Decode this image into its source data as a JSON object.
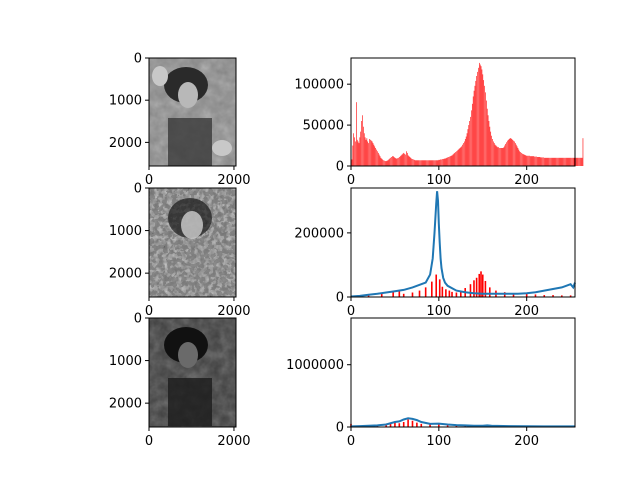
{
  "figure": {
    "background": "#ffffff",
    "hist_color": "#ff0000",
    "cdf_color": "#1f77b4"
  },
  "chart_data": [
    {
      "type": "image",
      "name": "original-grayscale-image",
      "subject": "grayscale portrait photo of a woman with curly hair raising her hands",
      "x_ticks": [
        0,
        2000
      ],
      "y_ticks": [
        0,
        1000,
        2000
      ],
      "xlim": [
        0,
        2048
      ],
      "ylim": [
        2560,
        0
      ]
    },
    {
      "type": "bar",
      "name": "original-histogram",
      "xlim": [
        0,
        255
      ],
      "ylim": [
        0,
        132000
      ],
      "x_ticks": [
        0,
        100,
        200
      ],
      "y_ticks": [
        0,
        50000,
        100000
      ],
      "bar_color": "#ff0000",
      "values": [
        2000,
        8000,
        25000,
        40000,
        35000,
        30000,
        78000,
        32000,
        30000,
        28000,
        35000,
        42000,
        55000,
        62000,
        48000,
        40000,
        35000,
        32000,
        34000,
        30000,
        28000,
        33000,
        32000,
        31000,
        30000,
        28000,
        26000,
        24000,
        22000,
        20000,
        18000,
        16000,
        14000,
        12000,
        10000,
        9000,
        8000,
        7000,
        6500,
        6000,
        6000,
        6500,
        7000,
        8000,
        9000,
        10000,
        11000,
        12000,
        12000,
        11000,
        10000,
        9500,
        9000,
        9500,
        10000,
        11000,
        12000,
        13000,
        14000,
        15000,
        16000,
        15000,
        14000,
        18000,
        16000,
        13000,
        12000,
        11000,
        10000,
        9000,
        8500,
        8000,
        7500,
        7000,
        7000,
        7000,
        7000,
        7000,
        7000,
        7000,
        7000,
        7000,
        7000,
        7000,
        7000,
        7000,
        7000,
        7000,
        7000,
        7000,
        7000,
        7000,
        7000,
        7000,
        7000,
        7000,
        7000,
        7000,
        7000,
        7000,
        7500,
        7500,
        8000,
        8000,
        8500,
        8500,
        9000,
        9000,
        9500,
        10000,
        10500,
        11000,
        11500,
        12000,
        12500,
        13000,
        14000,
        15000,
        16000,
        17000,
        18000,
        19000,
        20000,
        21000,
        22000,
        23000,
        24000,
        26000,
        28000,
        30000,
        33000,
        36000,
        40000,
        45000,
        50000,
        55000,
        60000,
        68000,
        76000,
        85000,
        92000,
        98000,
        104000,
        110000,
        115000,
        120000,
        126000,
        124000,
        122000,
        118000,
        112000,
        105000,
        98000,
        90000,
        80000,
        70000,
        62000,
        55000,
        48000,
        42000,
        37000,
        33000,
        30000,
        28000,
        26000,
        25000,
        24000,
        23000,
        23000,
        22000,
        22000,
        22000,
        22000,
        22000,
        23000,
        25000,
        27000,
        29000,
        31000,
        32000,
        33000,
        34000,
        34000,
        33000,
        32000,
        31000,
        30000,
        28000,
        26000,
        24000,
        22000,
        20000,
        18000,
        17000,
        16000,
        15000,
        14500,
        14000,
        13500,
        13000,
        12500,
        12500,
        12500,
        12500,
        12000,
        12000,
        12000,
        12000,
        12000,
        11500,
        11500,
        11500,
        11000,
        11000,
        11000,
        11000,
        10500,
        10500,
        10500,
        10500,
        10000,
        10000,
        10000,
        10000,
        10000,
        10000,
        10000,
        10000,
        10000,
        10000,
        10000,
        10000,
        10000,
        10000,
        10000,
        10000,
        10000,
        10000,
        10000,
        10000,
        10000,
        10000,
        10000,
        10000,
        10000,
        10000,
        10000,
        10000,
        10000,
        10000,
        10000,
        10000,
        10000,
        10000,
        10000,
        10000,
        10000,
        10000,
        10000,
        10000,
        10000,
        10000,
        10000,
        10000,
        34000
      ]
    },
    {
      "type": "image",
      "name": "equalized-grayscale-image",
      "subject": "grayscale portrait after histogram equalization, high contrast and noisy texture",
      "x_ticks": [
        0,
        2000
      ],
      "y_ticks": [
        0,
        1000,
        2000
      ],
      "xlim": [
        0,
        2048
      ],
      "ylim": [
        2560,
        0
      ]
    },
    {
      "type": "line",
      "name": "equalized-histogram-with-cdf",
      "xlim": [
        0,
        255
      ],
      "ylim": [
        0,
        340000
      ],
      "x_ticks": [
        0,
        100,
        200
      ],
      "y_ticks": [
        0,
        200000
      ],
      "series": [
        {
          "kind": "bar",
          "color": "#ff0000",
          "points": [
            [
              20,
              8000
            ],
            [
              35,
              12000
            ],
            [
              48,
              15000
            ],
            [
              55,
              18000
            ],
            [
              60,
              10000
            ],
            [
              70,
              14000
            ],
            [
              78,
              20000
            ],
            [
              85,
              30000
            ],
            [
              92,
              48000
            ],
            [
              97,
              70000
            ],
            [
              101,
              55000
            ],
            [
              104,
              32000
            ],
            [
              108,
              24000
            ],
            [
              112,
              20000
            ],
            [
              115,
              16000
            ],
            [
              120,
              14000
            ],
            [
              125,
              20000
            ],
            [
              130,
              28000
            ],
            [
              136,
              40000
            ],
            [
              140,
              52000
            ],
            [
              143,
              60000
            ],
            [
              146,
              72000
            ],
            [
              148,
              80000
            ],
            [
              150,
              70000
            ],
            [
              153,
              50000
            ],
            [
              158,
              30000
            ],
            [
              165,
              20000
            ],
            [
              175,
              15000
            ],
            [
              185,
              12000
            ],
            [
              200,
              10000
            ],
            [
              210,
              8000
            ],
            [
              220,
              6000
            ],
            [
              230,
              6000
            ],
            [
              240,
              5000
            ],
            [
              250,
              5000
            ]
          ]
        },
        {
          "kind": "line",
          "color": "#1f77b4",
          "points": [
            [
              0,
              1500
            ],
            [
              10,
              3500
            ],
            [
              20,
              7000
            ],
            [
              30,
              10000
            ],
            [
              40,
              14000
            ],
            [
              50,
              18000
            ],
            [
              60,
              22000
            ],
            [
              70,
              30000
            ],
            [
              80,
              40000
            ],
            [
              85,
              45000
            ],
            [
              90,
              70000
            ],
            [
              93,
              120000
            ],
            [
              95,
              200000
            ],
            [
              97,
              290000
            ],
            [
              98,
              330000
            ],
            [
              99,
              300000
            ],
            [
              100,
              230000
            ],
            [
              101,
              170000
            ],
            [
              102,
              120000
            ],
            [
              103,
              90000
            ],
            [
              105,
              60000
            ],
            [
              107,
              45000
            ],
            [
              110,
              35000
            ],
            [
              120,
              20000
            ],
            [
              130,
              15000
            ],
            [
              140,
              12000
            ],
            [
              150,
              10000
            ],
            [
              160,
              10000
            ],
            [
              170,
              10000
            ],
            [
              180,
              10000
            ],
            [
              190,
              10000
            ],
            [
              200,
              12000
            ],
            [
              210,
              15000
            ],
            [
              220,
              20000
            ],
            [
              230,
              25000
            ],
            [
              240,
              30000
            ],
            [
              245,
              35000
            ],
            [
              250,
              40000
            ],
            [
              253,
              30000
            ],
            [
              255,
              45000
            ]
          ]
        }
      ]
    },
    {
      "type": "image",
      "name": "darkened-grayscale-image",
      "subject": "low-brightness grayscale version of the same portrait",
      "x_ticks": [
        0,
        2000
      ],
      "y_ticks": [
        0,
        1000,
        2000
      ],
      "xlim": [
        0,
        2048
      ],
      "ylim": [
        2560,
        0
      ]
    },
    {
      "type": "line",
      "name": "darkened-histogram-with-cdf",
      "xlim": [
        0,
        255
      ],
      "ylim": [
        0,
        1750000
      ],
      "x_ticks": [
        0,
        100,
        200
      ],
      "y_ticks": [
        0,
        1000000
      ],
      "series": [
        {
          "kind": "bar",
          "color": "#ff0000",
          "points": [
            [
              0,
              50000
            ],
            [
              10,
              20000
            ],
            [
              20,
              25000
            ],
            [
              30,
              30000
            ],
            [
              40,
              50000
            ],
            [
              45,
              70000
            ],
            [
              50,
              90000
            ],
            [
              55,
              60000
            ],
            [
              60,
              80000
            ],
            [
              65,
              120000
            ],
            [
              70,
              100000
            ],
            [
              75,
              70000
            ],
            [
              80,
              50000
            ],
            [
              90,
              40000
            ],
            [
              100,
              45000
            ],
            [
              110,
              30000
            ],
            [
              120,
              25000
            ],
            [
              130,
              20000
            ],
            [
              140,
              15000
            ],
            [
              150,
              12000
            ],
            [
              160,
              10000
            ],
            [
              180,
              8000
            ],
            [
              200,
              6000
            ],
            [
              220,
              5000
            ],
            [
              240,
              4000
            ],
            [
              255,
              3000
            ]
          ]
        },
        {
          "kind": "line",
          "color": "#1f77b4",
          "points": [
            [
              0,
              10000
            ],
            [
              10,
              15000
            ],
            [
              20,
              20000
            ],
            [
              30,
              25000
            ],
            [
              40,
              40000
            ],
            [
              50,
              80000
            ],
            [
              55,
              90000
            ],
            [
              60,
              120000
            ],
            [
              65,
              140000
            ],
            [
              70,
              130000
            ],
            [
              75,
              110000
            ],
            [
              80,
              80000
            ],
            [
              90,
              50000
            ],
            [
              100,
              55000
            ],
            [
              110,
              40000
            ],
            [
              120,
              30000
            ],
            [
              130,
              25000
            ],
            [
              140,
              20000
            ],
            [
              150,
              20000
            ],
            [
              155,
              25000
            ],
            [
              160,
              20000
            ],
            [
              180,
              15000
            ],
            [
              200,
              12000
            ],
            [
              220,
              10000
            ],
            [
              240,
              10000
            ],
            [
              255,
              10000
            ]
          ]
        }
      ]
    }
  ]
}
